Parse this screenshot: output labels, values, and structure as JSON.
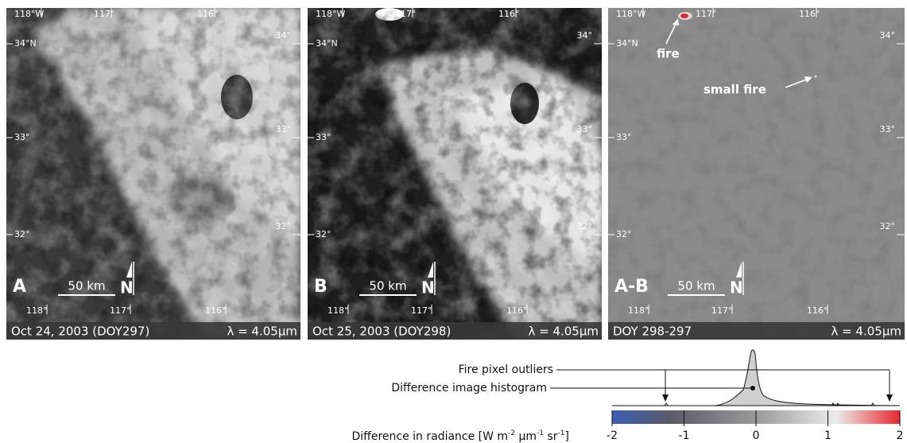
{
  "panels": [
    {
      "letter": "A",
      "caption": "Oct 24, 2003 (DOY297)"
    },
    {
      "letter": "B",
      "caption": "Oct 25, 2003 (DOY298)"
    },
    {
      "letter": "A-B",
      "caption": "DOY 298-297"
    }
  ],
  "map": {
    "top": [
      "118°W",
      "117°",
      "116°"
    ],
    "left": [
      "34°N",
      "33°",
      "32°"
    ],
    "right": [
      "34°",
      "33°",
      "32°"
    ],
    "bottom": [
      "118°",
      "117°",
      "116°"
    ],
    "scale": "50 km",
    "north": "N",
    "wavelength": "λ = 4.05µm"
  },
  "annotations": {
    "fire": "fire",
    "small_fire": "small fire"
  },
  "legend": {
    "outliers": "Fire pixel outliers",
    "histogram": "Difference image histogram",
    "axis_label": [
      "Difference in radiance [W m",
      "-2",
      " µm",
      "-1",
      " sr",
      "-1",
      "]"
    ],
    "range": [
      -2,
      2
    ],
    "ticks": [
      -2,
      -1,
      0,
      1,
      2
    ]
  }
}
